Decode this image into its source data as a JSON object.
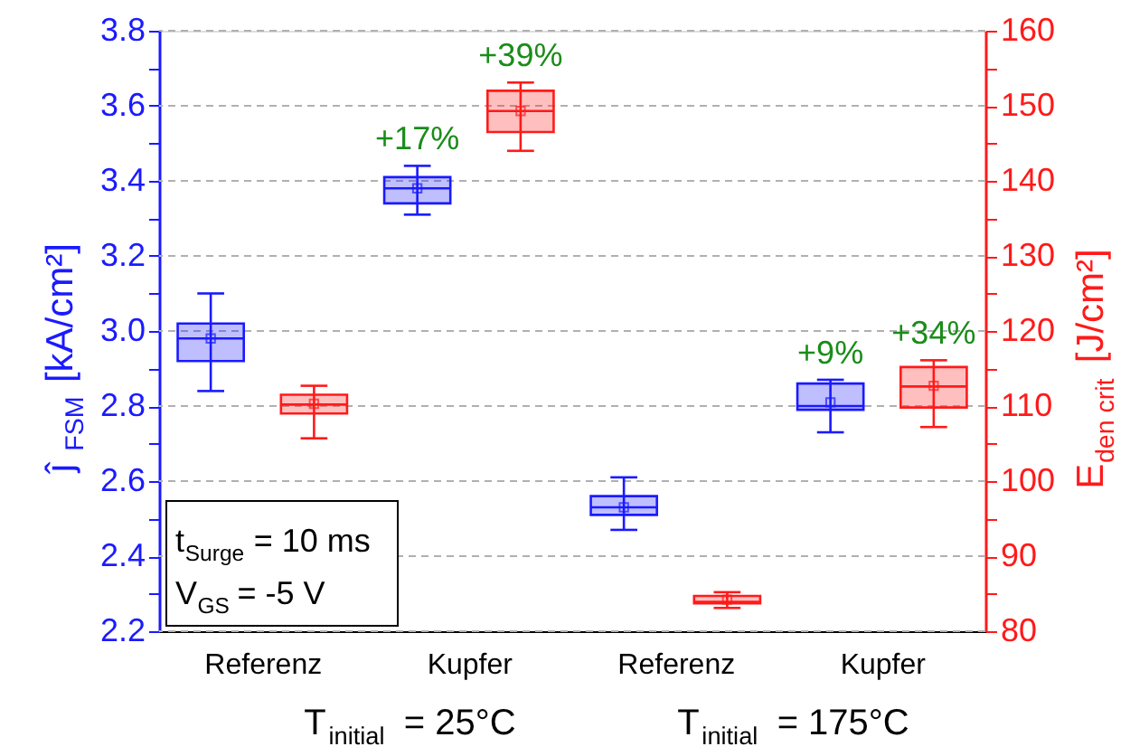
{
  "chart_data": {
    "type": "box",
    "categories": [
      "Referenz",
      "Kupfer",
      "Referenz",
      "Kupfer"
    ],
    "series": [
      {
        "color": "#1a1aff",
        "axis": "y",
        "boxes": [
          {
            "low": 2.84,
            "q1": 2.92,
            "median": 2.98,
            "q3": 3.02,
            "high": 3.1,
            "mean": 2.98
          },
          {
            "low": 3.31,
            "q1": 3.34,
            "median": 3.38,
            "q3": 3.41,
            "high": 3.44,
            "mean": 3.38
          },
          {
            "low": 2.47,
            "q1": 2.51,
            "median": 2.53,
            "q3": 2.56,
            "high": 2.61,
            "mean": 2.53
          },
          {
            "low": 2.73,
            "q1": 2.79,
            "median": 2.8,
            "q3": 2.86,
            "high": 2.87,
            "mean": 2.81
          }
        ]
      },
      {
        "color": "#ff1a1a",
        "axis": "y2",
        "boxes": [
          {
            "low": 105.7,
            "q1": 109.0,
            "median": 110.2,
            "q3": 111.5,
            "high": 112.7,
            "mean": 110.3
          },
          {
            "low": 144.0,
            "q1": 146.5,
            "median": 149.3,
            "q3": 152.0,
            "high": 153.1,
            "mean": 149.3
          },
          {
            "low": 83.1,
            "q1": 83.7,
            "median": 83.9,
            "q3": 84.7,
            "high": 85.2,
            "mean": 84.2
          },
          {
            "low": 107.2,
            "q1": 109.8,
            "median": 112.6,
            "q3": 115.2,
            "high": 116.1,
            "mean": 112.7
          }
        ]
      }
    ],
    "ylabel": "ĵ$_{FSM}$ [kA/cm²]",
    "y2label": "E$_{den crit}$ [J/cm²]",
    "ylim": [
      2.2,
      3.8
    ],
    "yticks": [
      2.2,
      {
        "value": 2.3,
        "label": null
      },
      2.4,
      {
        "value": 2.5,
        "label": null
      },
      2.6,
      {
        "value": 2.7,
        "label": null
      },
      2.8,
      {
        "value": 2.9,
        "label": null
      },
      {
        "value": 3.0,
        "label": "3.0"
      },
      {
        "value": 3.1,
        "label": null
      },
      3.2,
      {
        "value": 3.3,
        "label": null
      },
      3.4,
      {
        "value": 3.5,
        "label": null
      },
      3.6,
      {
        "value": 3.7,
        "label": null
      },
      3.8
    ],
    "y2lim": [
      80,
      160
    ],
    "y2ticks": [
      80,
      {
        "value": 85,
        "label": null
      },
      90,
      {
        "value": 95,
        "label": null
      },
      100,
      {
        "value": 105,
        "label": null
      },
      110,
      {
        "value": 115,
        "label": null
      },
      120,
      {
        "value": 125,
        "label": null
      },
      130,
      {
        "value": 135,
        "label": null
      },
      140,
      {
        "value": 145,
        "label": null
      },
      150,
      {
        "value": 155,
        "label": null
      },
      160
    ],
    "grid": "y",
    "annotations": [
      "+17%",
      "+39%",
      "+9%",
      "+34%",
      "t$_{Surge}$ = 10 ms",
      "V$_{GS}$ = -5 V",
      "T$_{initial}$ = 25°C",
      "T$_{initial}$ = 175°C"
    ]
  }
}
